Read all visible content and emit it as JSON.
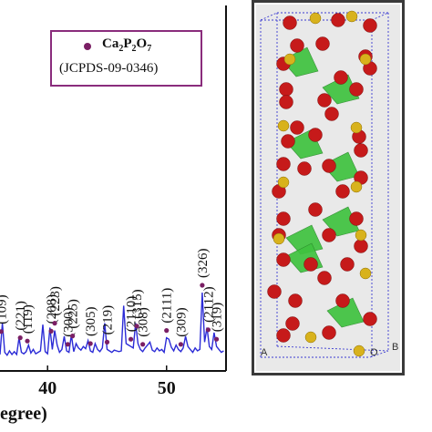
{
  "chart_data": {
    "type": "line",
    "xlabel": "egree)",
    "ylabel": "",
    "xlim": [
      36,
      55
    ],
    "x_ticks": [
      "40",
      "50"
    ],
    "legend": {
      "marker_color": "#7a1f64",
      "formula_parts": [
        "Ca",
        "2",
        "P",
        "2",
        "O",
        "7"
      ],
      "reference": "(JCPDS-09-0346)"
    },
    "series": [
      {
        "color": "#2b2bd6",
        "x": [
          36.0,
          36.2,
          36.4,
          36.6,
          36.8,
          37.0,
          37.2,
          37.4,
          37.6,
          37.8,
          38.0,
          38.2,
          38.4,
          38.6,
          38.8,
          39.0,
          39.2,
          39.4,
          39.6,
          39.8,
          40.0,
          40.2,
          40.4,
          40.6,
          40.8,
          41.0,
          41.2,
          41.4,
          41.6,
          41.8,
          42.0,
          42.2,
          42.4,
          42.6,
          42.8,
          43.0,
          43.2,
          43.4,
          43.6,
          43.8,
          44.0,
          44.2,
          44.4,
          44.6,
          44.8,
          45.0,
          45.2,
          45.4,
          45.6,
          45.8,
          46.0,
          46.2,
          46.4,
          46.6,
          46.8,
          47.0,
          47.2,
          47.4,
          47.6,
          47.8,
          48.0,
          48.2,
          48.4,
          48.6,
          48.8,
          49.0,
          49.2,
          49.4,
          49.6,
          49.8,
          50.0,
          50.2,
          50.4,
          50.6,
          50.8,
          51.0,
          51.2,
          51.4,
          51.6,
          51.8,
          52.0,
          52.2,
          52.4,
          52.6,
          52.8,
          53.0,
          53.2,
          53.4,
          53.6,
          53.8,
          54.0,
          54.2,
          54.4,
          54.6,
          54.8
        ],
        "y": [
          5,
          48,
          8,
          4,
          10,
          5,
          9,
          5,
          28,
          8,
          6,
          9,
          18,
          7,
          12,
          6,
          8,
          10,
          46,
          9,
          6,
          42,
          12,
          38,
          18,
          8,
          12,
          30,
          10,
          8,
          32,
          9,
          20,
          14,
          11,
          16,
          13,
          24,
          10,
          8,
          20,
          12,
          9,
          14,
          48,
          12,
          10,
          8,
          11,
          10,
          9,
          10,
          72,
          20,
          18,
          16,
          14,
          48,
          20,
          12,
          9,
          14,
          18,
          22,
          11,
          9,
          14,
          10,
          12,
          8,
          28,
          26,
          15,
          10,
          18,
          12,
          9,
          14,
          30,
          16,
          12,
          8,
          14,
          10,
          12,
          90,
          22,
          42,
          16,
          12,
          35,
          16,
          12,
          8,
          10
        ]
      }
    ],
    "peaks": [
      {
        "hkl": "(109)",
        "x": 36.1
      },
      {
        "hkl": "(221)",
        "x": 37.7
      },
      {
        "hkl": "(119)",
        "x": 38.3
      },
      {
        "hkl": "(208)",
        "x": 40.3
      },
      {
        "hkl": "(223)",
        "x": 40.6
      },
      {
        "hkl": "(300)",
        "x": 41.7
      },
      {
        "hkl": "(225)",
        "x": 42.1
      },
      {
        "hkl": "(305)",
        "x": 43.6
      },
      {
        "hkl": "(219)",
        "x": 45.0
      },
      {
        "hkl": "(2110)",
        "x": 47.0
      },
      {
        "hkl": "(315)",
        "x": 47.5
      },
      {
        "hkl": "(308)",
        "x": 48.0
      },
      {
        "hkl": "(2111)",
        "x": 50.0
      },
      {
        "hkl": "(309)",
        "x": 51.2
      },
      {
        "hkl": "(326)",
        "x": 53.0
      },
      {
        "hkl": "(2112)",
        "x": 53.5
      },
      {
        "hkl": "(319)",
        "x": 54.2
      }
    ]
  },
  "crystal": {
    "corner_labels": {
      "a": "A",
      "o": "O",
      "b": "B"
    },
    "colors": {
      "oxygen": "#c61a1a",
      "calcium": "#d8b21c",
      "tetrahedron": "#3fc23f",
      "cell_edge": "#3b3bd1",
      "frame": "#3a3a3a"
    }
  }
}
